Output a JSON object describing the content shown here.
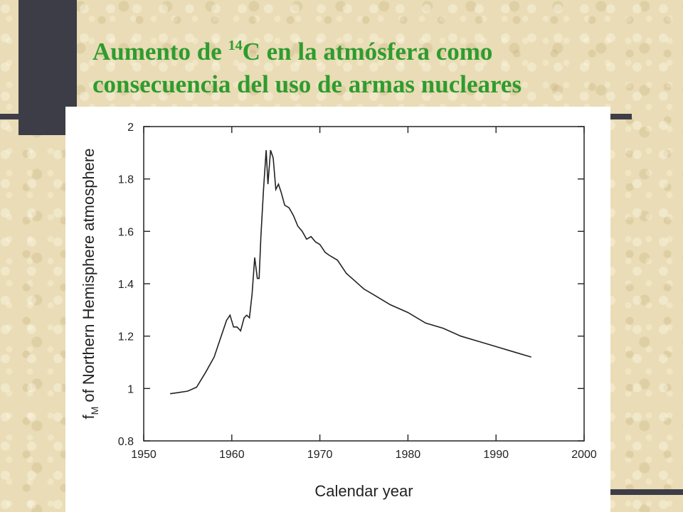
{
  "slide": {
    "title_part1": "Aumento de ",
    "title_superscript": "14",
    "title_part2": "C en la atmósfera como",
    "title_line2": "consecuencia del uso de armas nucleares",
    "title_color": "#2e9c2e",
    "accent_color": "#3d3d47"
  },
  "chart_data": {
    "type": "line",
    "title": "",
    "xlabel": "Calendar year",
    "ylabel_main": "f",
    "ylabel_sub": "M",
    "ylabel_rest": " of Northern Hemisphere atmosphere",
    "xlim": [
      1950,
      2000
    ],
    "ylim": [
      0.8,
      2.0
    ],
    "xticks": [
      1950,
      1960,
      1970,
      1980,
      1990,
      2000
    ],
    "yticks": [
      0.8,
      1.0,
      1.2,
      1.4,
      1.6,
      1.8,
      2.0
    ],
    "grid": false,
    "series": [
      {
        "x": [
          1953.0,
          1954.0,
          1955.0,
          1956.0,
          1957.0,
          1958.0,
          1958.8,
          1959.4,
          1959.8,
          1960.2,
          1960.6,
          1961.0,
          1961.4,
          1961.7,
          1962.0,
          1962.3,
          1962.6,
          1962.9,
          1963.1,
          1963.3,
          1963.6,
          1963.9,
          1964.1,
          1964.4,
          1964.7,
          1965.0,
          1965.3,
          1965.6,
          1966.0,
          1966.5,
          1967.0,
          1967.5,
          1968.0,
          1968.5,
          1969.0,
          1969.5,
          1970.0,
          1970.6,
          1971.0,
          1971.5,
          1972.0,
          1973.0,
          1974.0,
          1975.0,
          1976.0,
          1978.0,
          1980.0,
          1982.0,
          1984.0,
          1986.0,
          1988.0,
          1990.0,
          1992.0,
          1994.0
        ],
        "y": [
          0.98,
          0.985,
          0.99,
          1.005,
          1.06,
          1.12,
          1.2,
          1.26,
          1.28,
          1.235,
          1.235,
          1.22,
          1.27,
          1.28,
          1.27,
          1.36,
          1.5,
          1.42,
          1.42,
          1.58,
          1.76,
          1.91,
          1.78,
          1.91,
          1.88,
          1.76,
          1.78,
          1.75,
          1.7,
          1.69,
          1.66,
          1.62,
          1.6,
          1.57,
          1.58,
          1.56,
          1.55,
          1.52,
          1.51,
          1.5,
          1.49,
          1.44,
          1.41,
          1.38,
          1.36,
          1.32,
          1.29,
          1.25,
          1.23,
          1.2,
          1.18,
          1.16,
          1.14,
          1.12
        ]
      }
    ]
  }
}
